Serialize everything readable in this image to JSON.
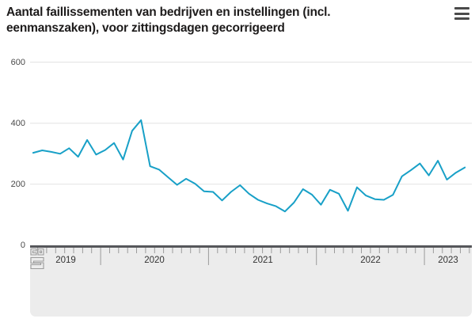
{
  "header": {
    "title": "Aantal faillissementen van bedrijven en instellingen (incl. eenmanszaken), voor zittingsdagen gecorrigeerd",
    "menu_icon": "hamburger-menu"
  },
  "footer": {
    "logo": "cbs-logo"
  },
  "chart_data": {
    "type": "line",
    "title": "Aantal faillissementen van bedrijven en instellingen (incl. eenmanszaken), voor zittingsdagen gecorrigeerd",
    "x_unit": "month",
    "x_start": "2019-05",
    "x_end": "2023-05",
    "years": [
      {
        "label": "2019",
        "months": 8
      },
      {
        "label": "2020",
        "months": 12
      },
      {
        "label": "2021",
        "months": 12
      },
      {
        "label": "2022",
        "months": 12
      },
      {
        "label": "2023",
        "months": 5
      }
    ],
    "values": [
      303,
      311,
      306,
      300,
      318,
      290,
      345,
      297,
      312,
      335,
      281,
      375,
      410,
      259,
      248,
      223,
      198,
      218,
      202,
      177,
      175,
      147,
      175,
      197,
      169,
      149,
      137,
      128,
      111,
      140,
      184,
      166,
      133,
      182,
      169,
      113,
      190,
      163,
      151,
      149,
      165,
      226,
      246,
      268,
      229,
      277,
      215,
      238,
      255
    ],
    "y_ticks": [
      0,
      200,
      400,
      600
    ],
    "ylim": [
      0,
      620
    ],
    "grid": true,
    "legend": "none",
    "line_color": "#18a0c7",
    "grid_color": "#e3e3e3",
    "tick_color": "#9b9b9b",
    "axis_band_color": "#ececec",
    "axis_topbar_color": "#56575b"
  }
}
